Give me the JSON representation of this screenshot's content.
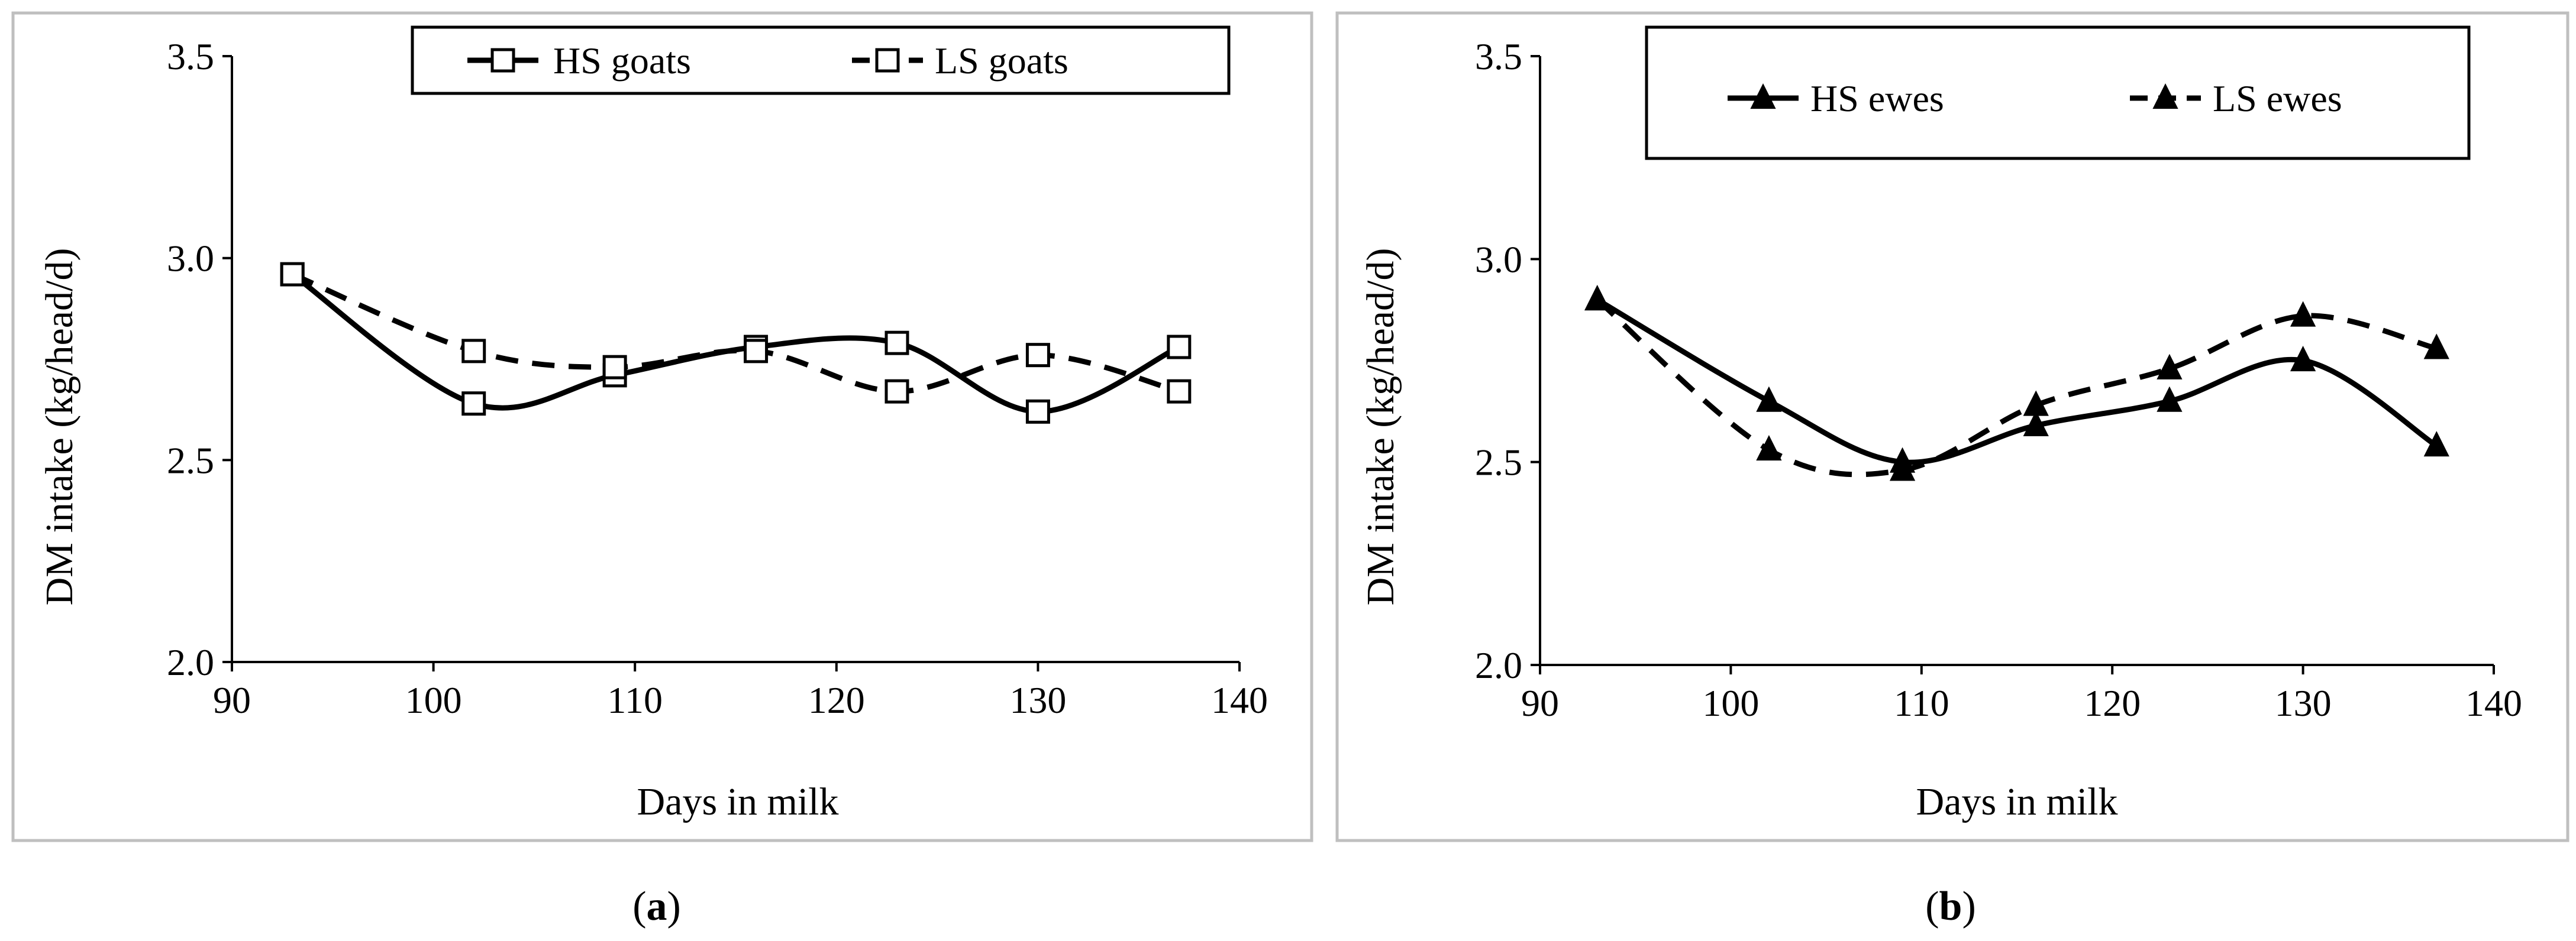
{
  "chart_data": [
    {
      "type": "line",
      "caption": "(a)",
      "caption_letter": "a",
      "xlabel": "Days in milk",
      "ylabel": "DM intake (kg/head/d)",
      "xlim": [
        90,
        140
      ],
      "ylim": [
        2.0,
        3.5
      ],
      "xticks": [
        90,
        100,
        110,
        120,
        130,
        140
      ],
      "yticks": [
        "2.0",
        "2.5",
        "3.0",
        "3.5"
      ],
      "legend_position": "top-right",
      "marker": "square-open",
      "series": [
        {
          "name": "HS goats",
          "line": "solid",
          "x": [
            93,
            102,
            109,
            116,
            123,
            130,
            137
          ],
          "y": [
            2.96,
            2.64,
            2.71,
            2.78,
            2.79,
            2.62,
            2.78
          ]
        },
        {
          "name": "LS goats",
          "line": "dashed",
          "x": [
            93,
            102,
            109,
            116,
            123,
            130,
            137
          ],
          "y": [
            2.96,
            2.77,
            2.73,
            2.77,
            2.67,
            2.76,
            2.67
          ]
        }
      ]
    },
    {
      "type": "line",
      "caption": "(b)",
      "caption_letter": "b",
      "xlabel": "Days in milk",
      "ylabel": "DM intake (kg/head/d)",
      "xlim": [
        90,
        140
      ],
      "ylim": [
        2.0,
        3.5
      ],
      "xticks": [
        90,
        100,
        110,
        120,
        130,
        140
      ],
      "yticks": [
        "2.0",
        "2.5",
        "3.0",
        "3.5"
      ],
      "legend_position": "top-right",
      "marker": "triangle-filled",
      "series": [
        {
          "name": "HS ewes",
          "line": "solid",
          "x": [
            93,
            102,
            109,
            116,
            123,
            130,
            137
          ],
          "y": [
            2.9,
            2.65,
            2.5,
            2.59,
            2.65,
            2.75,
            2.54
          ]
        },
        {
          "name": "LS ewes",
          "line": "dashed",
          "x": [
            93,
            102,
            109,
            116,
            123,
            130,
            137
          ],
          "y": [
            2.9,
            2.53,
            2.48,
            2.64,
            2.73,
            2.86,
            2.78
          ]
        }
      ]
    }
  ]
}
